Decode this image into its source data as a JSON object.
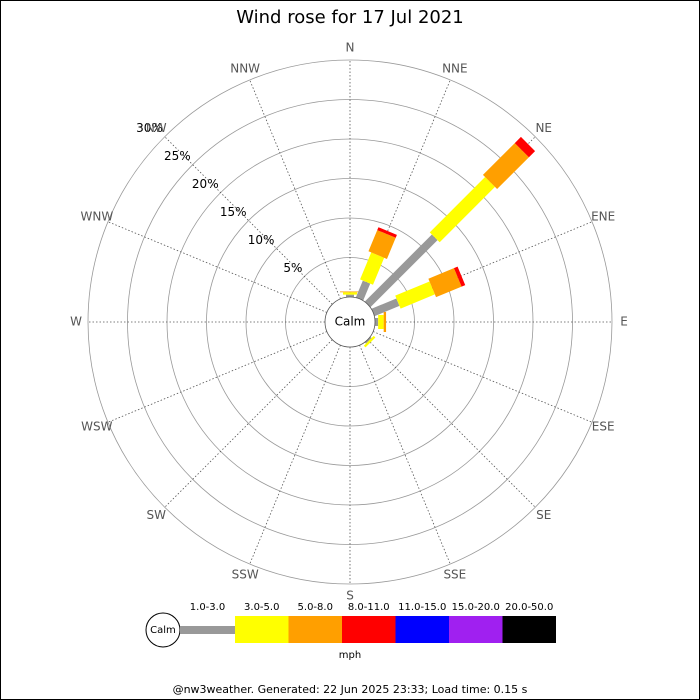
{
  "chart_data": {
    "type": "windrose",
    "title": "Wind rose for 17 Jul 2021",
    "directions": [
      "N",
      "NNE",
      "NE",
      "ENE",
      "E",
      "ESE",
      "SE",
      "SSE",
      "S",
      "SSW",
      "SW",
      "WSW",
      "W",
      "WNW",
      "NW",
      "NNW"
    ],
    "calm_label": "Calm",
    "unit": "mph",
    "rlim": [
      0,
      30
    ],
    "rticks": [
      {
        "value": 5,
        "label": "5%"
      },
      {
        "value": 10,
        "label": "10%"
      },
      {
        "value": 15,
        "label": "15%"
      },
      {
        "value": 20,
        "label": "20%"
      },
      {
        "value": 25,
        "label": "25%"
      },
      {
        "value": 30,
        "label": "30%"
      }
    ],
    "series": [
      {
        "name": "1.0-3.0",
        "color": "#999999",
        "values": [
          0.3,
          2.3,
          12,
          3.4,
          0.4,
          0,
          0.2,
          0,
          0,
          0,
          0,
          0,
          0,
          0,
          0,
          0
        ]
      },
      {
        "name": "3.0-5.0",
        "color": "#ffff00",
        "values": [
          0.3,
          3.7,
          9.9,
          4.7,
          0.7,
          0,
          0.3,
          0,
          0,
          0,
          0,
          0,
          0,
          0,
          0,
          0
        ]
      },
      {
        "name": "5.0-8.0",
        "color": "#ff9f00",
        "values": [
          0.1,
          2.9,
          5.7,
          3.5,
          0.3,
          0,
          0,
          0,
          0,
          0,
          0,
          0,
          0,
          0,
          0,
          0
        ]
      },
      {
        "name": "8.0-11.0",
        "color": "#ff0000",
        "values": [
          0,
          0.4,
          1.1,
          0.5,
          0,
          0,
          0,
          0,
          0,
          0,
          0,
          0,
          0,
          0,
          0,
          0
        ]
      },
      {
        "name": "11.0-15.0",
        "color": "#0000ff",
        "values": [
          0,
          0,
          0,
          0,
          0,
          0,
          0,
          0,
          0,
          0,
          0,
          0,
          0,
          0,
          0,
          0
        ]
      },
      {
        "name": "15.0-20.0",
        "color": "#a020f0",
        "values": [
          0,
          0,
          0,
          0,
          0,
          0,
          0,
          0,
          0,
          0,
          0,
          0,
          0,
          0,
          0,
          0
        ]
      },
      {
        "name": "20.0-50.0",
        "color": "#000000",
        "values": [
          0,
          0,
          0,
          0,
          0,
          0,
          0,
          0,
          0,
          0,
          0,
          0,
          0,
          0,
          0,
          0
        ]
      }
    ],
    "footer": "@nw3weather. Generated: 22 Jun 2025 23:33; Load time: 0.15 s"
  }
}
